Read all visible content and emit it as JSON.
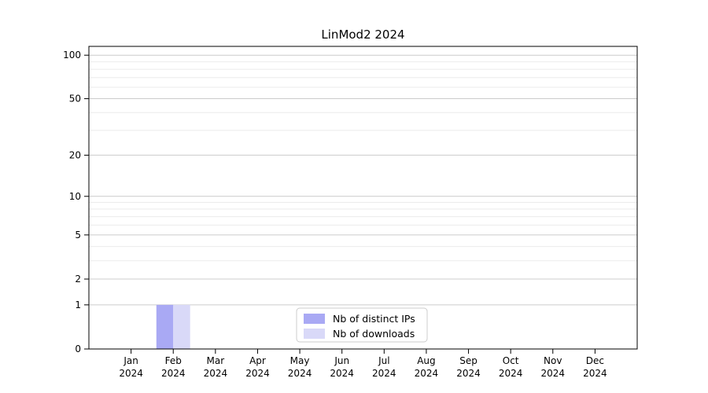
{
  "chart_data": {
    "type": "bar",
    "title": "LinMod2 2024",
    "categories": [
      "Jan",
      "Feb",
      "Mar",
      "Apr",
      "May",
      "Jun",
      "Jul",
      "Aug",
      "Sep",
      "Oct",
      "Nov",
      "Dec"
    ],
    "year": "2024",
    "series": [
      {
        "name": "Nb of distinct IPs",
        "color": "#a9a9f4",
        "values": [
          0,
          1,
          0,
          0,
          0,
          0,
          0,
          0,
          0,
          0,
          0,
          0
        ]
      },
      {
        "name": "Nb of downloads",
        "color": "#d9d9f8",
        "values": [
          0,
          1,
          0,
          0,
          0,
          0,
          0,
          0,
          0,
          0,
          0,
          0
        ]
      }
    ],
    "xlabel": "",
    "ylabel": "",
    "y_scale": "log10(value+1)",
    "y_ticks": [
      0,
      1,
      2,
      5,
      10,
      20,
      50,
      100
    ],
    "y_minor_ticks": [
      3,
      4,
      6,
      7,
      8,
      9,
      30,
      40,
      60,
      70,
      80,
      90
    ],
    "ylim": [
      0,
      115
    ],
    "grid": true,
    "legend_position": "bottom-center",
    "colors": {
      "axis": "#000000",
      "text": "#000000",
      "grid_major": "#cccccc",
      "grid_minor": "#ebebeb",
      "legend_border": "#cccccc",
      "legend_background": "#ffffff",
      "plot_background": "#ffffff"
    }
  }
}
